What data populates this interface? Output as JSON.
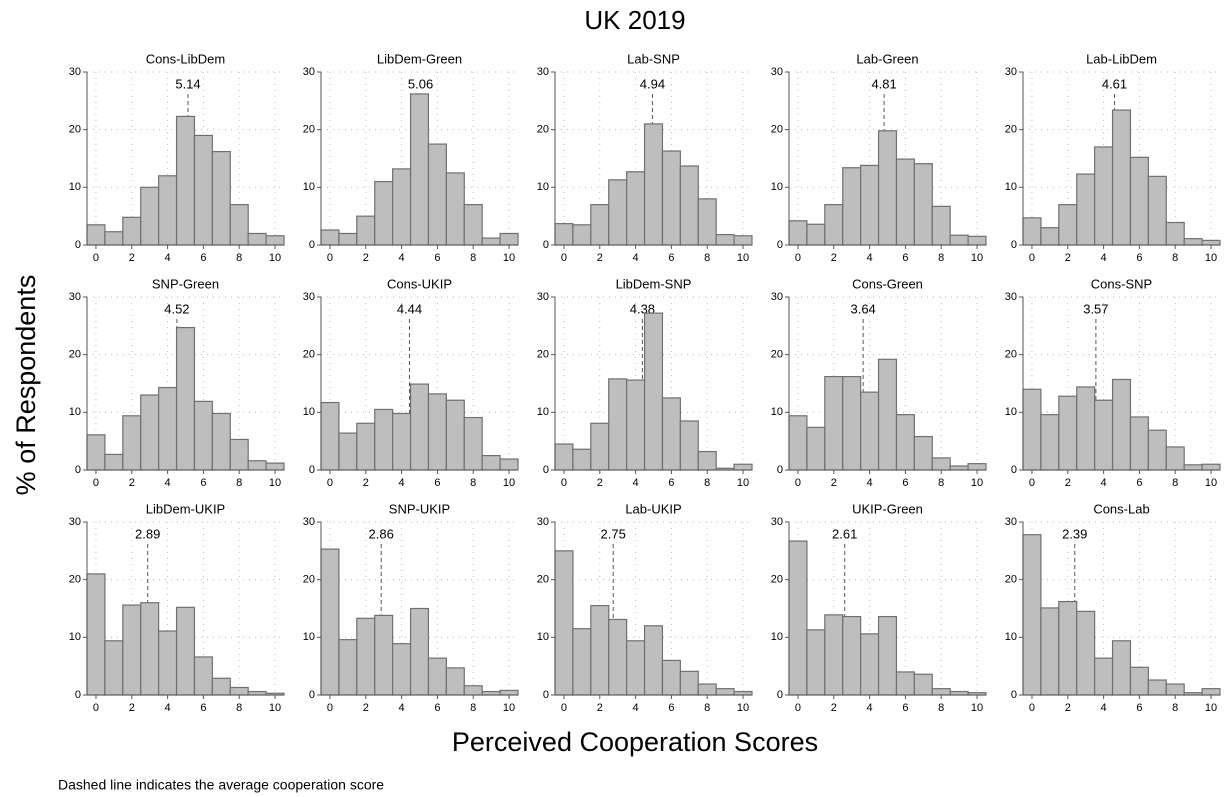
{
  "title": "UK 2019",
  "x_label": "Perceived Cooperation Scores",
  "y_label": "% of Respondents",
  "note": "Dashed line indicates the average cooperation score",
  "chart_data": [
    {
      "type": "histogram",
      "title": "Cons-LibDem",
      "mean": 5.14,
      "bins": [
        -0.5,
        0.5,
        1.5,
        2.5,
        3.5,
        4.5,
        5.5,
        6.5,
        7.5,
        8.5,
        9.5,
        10.5
      ],
      "values": [
        3.5,
        2.3,
        4.8,
        10,
        12,
        22.3,
        19,
        16.2,
        7,
        2,
        1.6
      ],
      "color": "#bebebe",
      "xlim": [
        -0.5,
        10.5
      ],
      "xticks": [
        0,
        2,
        4,
        6,
        8,
        10
      ],
      "ylim": [
        0,
        30
      ],
      "yticks": [
        0,
        10,
        20,
        30
      ],
      "grid": true
    },
    {
      "type": "histogram",
      "title": "LibDem-Green",
      "mean": 5.06,
      "bins": [
        -0.5,
        0.5,
        1.5,
        2.5,
        3.5,
        4.5,
        5.5,
        6.5,
        7.5,
        8.5,
        9.5,
        10.5
      ],
      "values": [
        2.6,
        2,
        5,
        11,
        13.2,
        26.2,
        17.5,
        12.5,
        7,
        1.2,
        2
      ],
      "color": "#bebebe",
      "xlim": [
        -0.5,
        10.5
      ],
      "xticks": [
        0,
        2,
        4,
        6,
        8,
        10
      ],
      "ylim": [
        0,
        30
      ],
      "yticks": [
        0,
        10,
        20,
        30
      ],
      "grid": true
    },
    {
      "type": "histogram",
      "title": "Lab-SNP",
      "mean": 4.94,
      "bins": [
        -0.5,
        0.5,
        1.5,
        2.5,
        3.5,
        4.5,
        5.5,
        6.5,
        7.5,
        8.5,
        9.5,
        10.5
      ],
      "values": [
        3.7,
        3.5,
        7,
        11.3,
        12.7,
        21,
        16.3,
        13.7,
        8,
        1.8,
        1.6
      ],
      "color": "#bebebe",
      "xlim": [
        -0.5,
        10.5
      ],
      "xticks": [
        0,
        2,
        4,
        6,
        8,
        10
      ],
      "ylim": [
        0,
        30
      ],
      "yticks": [
        0,
        10,
        20,
        30
      ],
      "grid": true
    },
    {
      "type": "histogram",
      "title": "Lab-Green",
      "mean": 4.81,
      "bins": [
        -0.5,
        0.5,
        1.5,
        2.5,
        3.5,
        4.5,
        5.5,
        6.5,
        7.5,
        8.5,
        9.5,
        10.5
      ],
      "values": [
        4.2,
        3.6,
        7,
        13.4,
        13.8,
        19.8,
        14.9,
        14.1,
        6.7,
        1.7,
        1.5
      ],
      "color": "#bebebe",
      "xlim": [
        -0.5,
        10.5
      ],
      "xticks": [
        0,
        2,
        4,
        6,
        8,
        10
      ],
      "ylim": [
        0,
        30
      ],
      "yticks": [
        0,
        10,
        20,
        30
      ],
      "grid": true
    },
    {
      "type": "histogram",
      "title": "Lab-LibDem",
      "mean": 4.61,
      "bins": [
        -0.5,
        0.5,
        1.5,
        2.5,
        3.5,
        4.5,
        5.5,
        6.5,
        7.5,
        8.5,
        9.5,
        10.5
      ],
      "values": [
        4.7,
        3,
        7,
        12.3,
        17,
        23.4,
        15.2,
        11.9,
        3.9,
        1.1,
        0.8
      ],
      "color": "#bebebe",
      "xlim": [
        -0.5,
        10.5
      ],
      "xticks": [
        0,
        2,
        4,
        6,
        8,
        10
      ],
      "ylim": [
        0,
        30
      ],
      "yticks": [
        0,
        10,
        20,
        30
      ],
      "grid": true
    },
    {
      "type": "histogram",
      "title": "SNP-Green",
      "mean": 4.52,
      "bins": [
        -0.5,
        0.5,
        1.5,
        2.5,
        3.5,
        4.5,
        5.5,
        6.5,
        7.5,
        8.5,
        9.5,
        10.5
      ],
      "values": [
        6.1,
        2.7,
        9.4,
        13,
        14.3,
        24.7,
        11.9,
        9.8,
        5.3,
        1.6,
        1.2
      ],
      "color": "#bebebe",
      "xlim": [
        -0.5,
        10.5
      ],
      "xticks": [
        0,
        2,
        4,
        6,
        8,
        10
      ],
      "ylim": [
        0,
        30
      ],
      "yticks": [
        0,
        10,
        20,
        30
      ],
      "grid": true
    },
    {
      "type": "histogram",
      "title": "Cons-UKIP",
      "mean": 4.44,
      "bins": [
        -0.5,
        0.5,
        1.5,
        2.5,
        3.5,
        4.5,
        5.5,
        6.5,
        7.5,
        8.5,
        9.5,
        10.5
      ],
      "values": [
        11.7,
        6.4,
        8.1,
        10.5,
        9.8,
        14.9,
        13.2,
        12.1,
        9.1,
        2.5,
        1.9
      ],
      "color": "#bebebe",
      "xlim": [
        -0.5,
        10.5
      ],
      "xticks": [
        0,
        2,
        4,
        6,
        8,
        10
      ],
      "ylim": [
        0,
        30
      ],
      "yticks": [
        0,
        10,
        20,
        30
      ],
      "grid": true
    },
    {
      "type": "histogram",
      "title": "LibDem-SNP",
      "mean": 4.38,
      "bins": [
        -0.5,
        0.5,
        1.5,
        2.5,
        3.5,
        4.5,
        5.5,
        6.5,
        7.5,
        8.5,
        9.5,
        10.5
      ],
      "values": [
        4.5,
        3.6,
        8.1,
        15.8,
        15.6,
        27.2,
        12.5,
        8.5,
        3.2,
        0.3,
        1
      ],
      "color": "#bebebe",
      "xlim": [
        -0.5,
        10.5
      ],
      "xticks": [
        0,
        2,
        4,
        6,
        8,
        10
      ],
      "ylim": [
        0,
        30
      ],
      "yticks": [
        0,
        10,
        20,
        30
      ],
      "grid": true
    },
    {
      "type": "histogram",
      "title": "Cons-Green",
      "mean": 3.64,
      "bins": [
        -0.5,
        0.5,
        1.5,
        2.5,
        3.5,
        4.5,
        5.5,
        6.5,
        7.5,
        8.5,
        9.5,
        10.5
      ],
      "values": [
        9.4,
        7.4,
        16.2,
        16.2,
        13.5,
        19.2,
        9.6,
        5.8,
        2.1,
        0.7,
        1.1
      ],
      "color": "#bebebe",
      "xlim": [
        -0.5,
        10.5
      ],
      "xticks": [
        0,
        2,
        4,
        6,
        8,
        10
      ],
      "ylim": [
        0,
        30
      ],
      "yticks": [
        0,
        10,
        20,
        30
      ],
      "grid": true
    },
    {
      "type": "histogram",
      "title": "Cons-SNP",
      "mean": 3.57,
      "bins": [
        -0.5,
        0.5,
        1.5,
        2.5,
        3.5,
        4.5,
        5.5,
        6.5,
        7.5,
        8.5,
        9.5,
        10.5
      ],
      "values": [
        14,
        9.6,
        12.8,
        14.4,
        12.1,
        15.7,
        9.2,
        6.9,
        4,
        0.9,
        1
      ],
      "color": "#bebebe",
      "xlim": [
        -0.5,
        10.5
      ],
      "xticks": [
        0,
        2,
        4,
        6,
        8,
        10
      ],
      "ylim": [
        0,
        30
      ],
      "yticks": [
        0,
        10,
        20,
        30
      ],
      "grid": true
    },
    {
      "type": "histogram",
      "title": "LibDem-UKIP",
      "mean": 2.89,
      "bins": [
        -0.5,
        0.5,
        1.5,
        2.5,
        3.5,
        4.5,
        5.5,
        6.5,
        7.5,
        8.5,
        9.5,
        10.5
      ],
      "values": [
        21,
        9.4,
        15.6,
        16,
        11.1,
        15.2,
        6.6,
        2.9,
        1.3,
        0.6,
        0.3
      ],
      "color": "#bebebe",
      "xlim": [
        -0.5,
        10.5
      ],
      "xticks": [
        0,
        2,
        4,
        6,
        8,
        10
      ],
      "ylim": [
        0,
        30
      ],
      "yticks": [
        0,
        10,
        20,
        30
      ],
      "grid": true
    },
    {
      "type": "histogram",
      "title": "SNP-UKIP",
      "mean": 2.86,
      "bins": [
        -0.5,
        0.5,
        1.5,
        2.5,
        3.5,
        4.5,
        5.5,
        6.5,
        7.5,
        8.5,
        9.5,
        10.5
      ],
      "values": [
        25.3,
        9.6,
        13.3,
        13.8,
        8.9,
        15,
        6.4,
        4.7,
        1.6,
        0.6,
        0.8
      ],
      "color": "#bebebe",
      "xlim": [
        -0.5,
        10.5
      ],
      "xticks": [
        0,
        2,
        4,
        6,
        8,
        10
      ],
      "ylim": [
        0,
        30
      ],
      "yticks": [
        0,
        10,
        20,
        30
      ],
      "grid": true
    },
    {
      "type": "histogram",
      "title": "Lab-UKIP",
      "mean": 2.75,
      "bins": [
        -0.5,
        0.5,
        1.5,
        2.5,
        3.5,
        4.5,
        5.5,
        6.5,
        7.5,
        8.5,
        9.5,
        10.5
      ],
      "values": [
        25,
        11.5,
        15.5,
        13.1,
        9.4,
        12,
        6,
        4.1,
        1.9,
        1.1,
        0.6
      ],
      "color": "#bebebe",
      "xlim": [
        -0.5,
        10.5
      ],
      "xticks": [
        0,
        2,
        4,
        6,
        8,
        10
      ],
      "ylim": [
        0,
        30
      ],
      "yticks": [
        0,
        10,
        20,
        30
      ],
      "grid": true
    },
    {
      "type": "histogram",
      "title": "UKIP-Green",
      "mean": 2.61,
      "bins": [
        -0.5,
        0.5,
        1.5,
        2.5,
        3.5,
        4.5,
        5.5,
        6.5,
        7.5,
        8.5,
        9.5,
        10.5
      ],
      "values": [
        26.7,
        11.3,
        13.9,
        13.6,
        10.6,
        13.6,
        4,
        3.6,
        1.1,
        0.6,
        0.4
      ],
      "color": "#bebebe",
      "xlim": [
        -0.5,
        10.5
      ],
      "xticks": [
        0,
        2,
        4,
        6,
        8,
        10
      ],
      "ylim": [
        0,
        30
      ],
      "yticks": [
        0,
        10,
        20,
        30
      ],
      "grid": true
    },
    {
      "type": "histogram",
      "title": "Cons-Lab",
      "mean": 2.39,
      "bins": [
        -0.5,
        0.5,
        1.5,
        2.5,
        3.5,
        4.5,
        5.5,
        6.5,
        7.5,
        8.5,
        9.5,
        10.5
      ],
      "values": [
        27.8,
        15.1,
        16.2,
        14.5,
        6.4,
        9.4,
        4.8,
        2.6,
        1.9,
        0.4,
        1.1
      ],
      "color": "#bebebe",
      "xlim": [
        -0.5,
        10.5
      ],
      "xticks": [
        0,
        2,
        4,
        6,
        8,
        10
      ],
      "ylim": [
        0,
        30
      ],
      "yticks": [
        0,
        10,
        20,
        30
      ],
      "grid": true
    }
  ]
}
